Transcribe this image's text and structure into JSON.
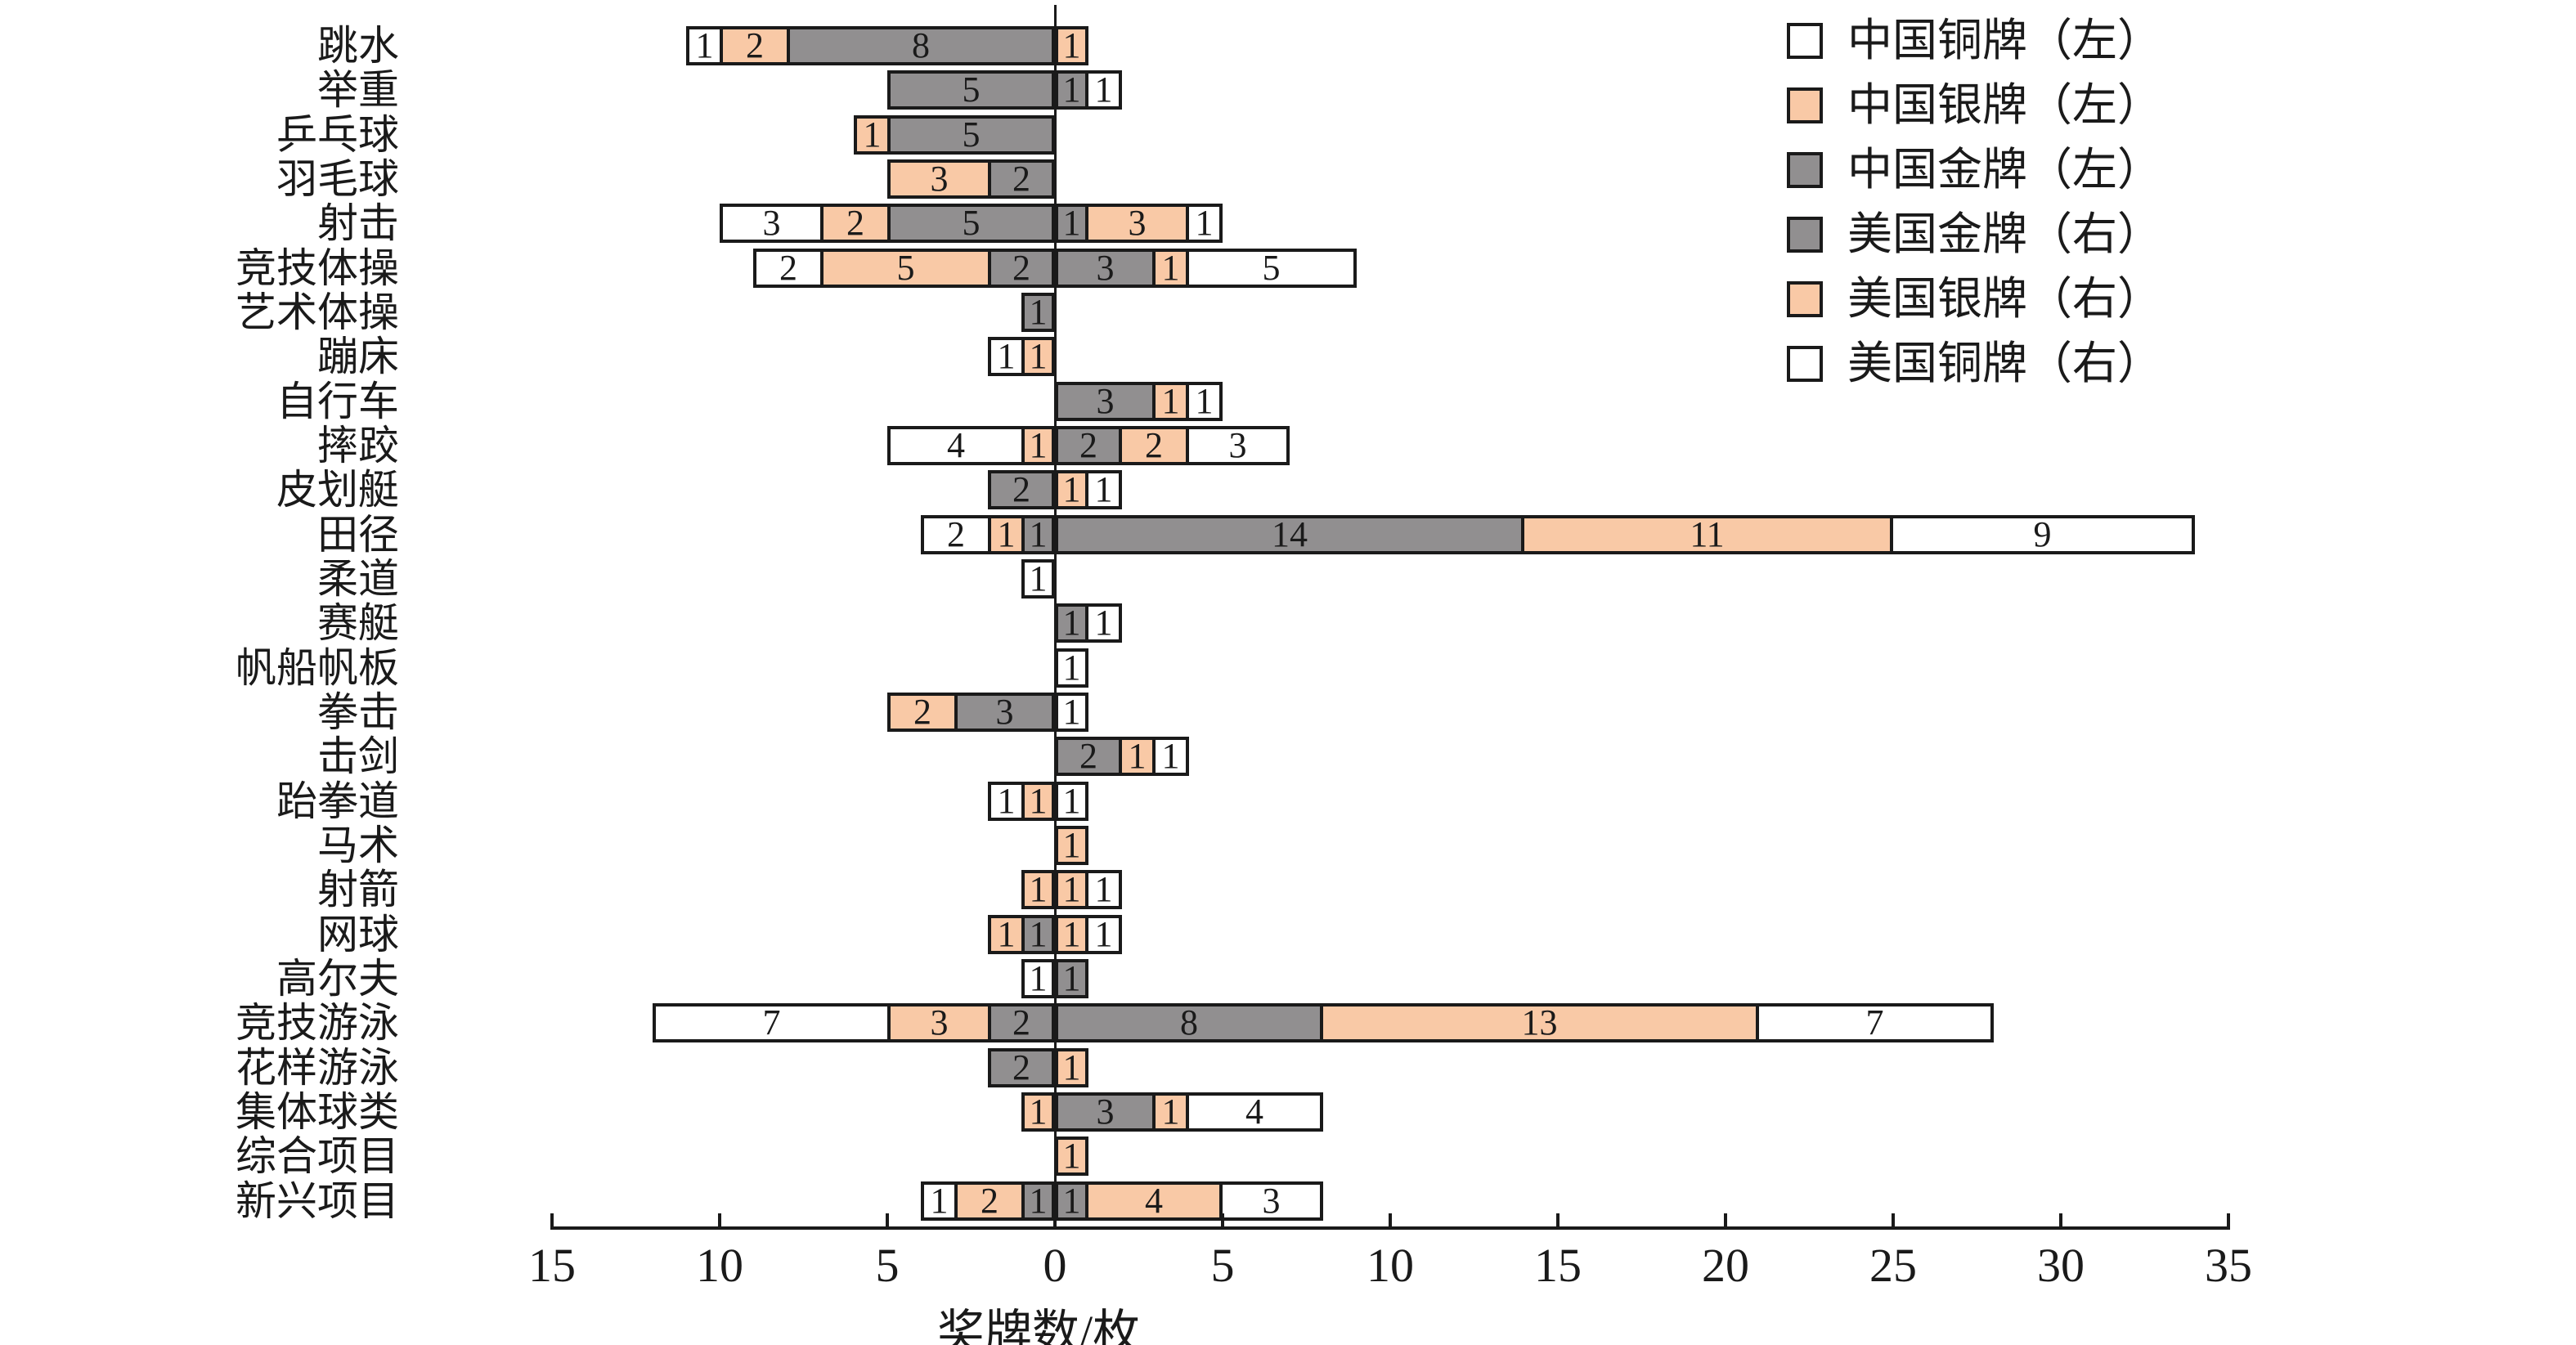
{
  "chart_data": {
    "type": "bar",
    "variant": "diverging-stacked-horizontal",
    "title": "",
    "xlabel": "奖牌数/枚",
    "axis": {
      "left_side": "中国 (China, 左)",
      "right_side": "美国 (USA, 右)",
      "ticks": [
        -15,
        -10,
        -5,
        0,
        5,
        10,
        15,
        20,
        25,
        30,
        35
      ],
      "tick_step": 5,
      "xlim_left": -15,
      "xlim_right": 35,
      "grid": false
    },
    "medal_colors": {
      "gold": "#918f90",
      "silver": "#f9c9a6",
      "bronze": "#ffffff",
      "border": "#1a1a1a"
    },
    "stack_order_from_axis": [
      "gold",
      "silver",
      "bronze"
    ],
    "legend_position": "top-right",
    "legend": [
      {
        "label": "中国铜牌（左）",
        "color": "#ffffff"
      },
      {
        "label": "中国银牌（左）",
        "color": "#f9c9a6"
      },
      {
        "label": "中国金牌（左）",
        "color": "#918f90"
      },
      {
        "label": "美国金牌（右）",
        "color": "#918f90"
      },
      {
        "label": "美国银牌（右）",
        "color": "#f9c9a6"
      },
      {
        "label": "美国铜牌（右）",
        "color": "#ffffff"
      }
    ],
    "rows": [
      {
        "sport": "跳水",
        "china": {
          "gold": 8,
          "silver": 2,
          "bronze": 1
        },
        "usa": {
          "gold": 0,
          "silver": 1,
          "bronze": 0
        }
      },
      {
        "sport": "举重",
        "china": {
          "gold": 5,
          "silver": 0,
          "bronze": 0
        },
        "usa": {
          "gold": 1,
          "silver": 0,
          "bronze": 1
        }
      },
      {
        "sport": "乒乓球",
        "china": {
          "gold": 5,
          "silver": 1,
          "bronze": 0
        },
        "usa": {
          "gold": 0,
          "silver": 0,
          "bronze": 0
        }
      },
      {
        "sport": "羽毛球",
        "china": {
          "gold": 2,
          "silver": 3,
          "bronze": 0
        },
        "usa": {
          "gold": 0,
          "silver": 0,
          "bronze": 0
        }
      },
      {
        "sport": "射击",
        "china": {
          "gold": 5,
          "silver": 2,
          "bronze": 3
        },
        "usa": {
          "gold": 1,
          "silver": 3,
          "bronze": 1
        }
      },
      {
        "sport": "竞技体操",
        "china": {
          "gold": 2,
          "silver": 5,
          "bronze": 2
        },
        "usa": {
          "gold": 3,
          "silver": 1,
          "bronze": 5
        }
      },
      {
        "sport": "艺术体操",
        "china": {
          "gold": 1,
          "silver": 0,
          "bronze": 0
        },
        "usa": {
          "gold": 0,
          "silver": 0,
          "bronze": 0
        }
      },
      {
        "sport": "蹦床",
        "china": {
          "gold": 0,
          "silver": 1,
          "bronze": 1
        },
        "usa": {
          "gold": 0,
          "silver": 0,
          "bronze": 0
        }
      },
      {
        "sport": "自行车",
        "china": {
          "gold": 0,
          "silver": 0,
          "bronze": 0
        },
        "usa": {
          "gold": 3,
          "silver": 1,
          "bronze": 1
        }
      },
      {
        "sport": "摔跤",
        "china": {
          "gold": 0,
          "silver": 1,
          "bronze": 4
        },
        "usa": {
          "gold": 2,
          "silver": 2,
          "bronze": 3
        }
      },
      {
        "sport": "皮划艇",
        "china": {
          "gold": 2,
          "silver": 0,
          "bronze": 0
        },
        "usa": {
          "gold": 0,
          "silver": 1,
          "bronze": 1
        }
      },
      {
        "sport": "田径",
        "china": {
          "gold": 1,
          "silver": 1,
          "bronze": 2
        },
        "usa": {
          "gold": 14,
          "silver": 11,
          "bronze": 9
        }
      },
      {
        "sport": "柔道",
        "china": {
          "gold": 0,
          "silver": 0,
          "bronze": 1
        },
        "usa": {
          "gold": 0,
          "silver": 0,
          "bronze": 0
        }
      },
      {
        "sport": "赛艇",
        "china": {
          "gold": 0,
          "silver": 0,
          "bronze": 0
        },
        "usa": {
          "gold": 1,
          "silver": 0,
          "bronze": 1
        }
      },
      {
        "sport": "帆船帆板",
        "china": {
          "gold": 0,
          "silver": 0,
          "bronze": 0
        },
        "usa": {
          "gold": 0,
          "silver": 0,
          "bronze": 1
        }
      },
      {
        "sport": "拳击",
        "china": {
          "gold": 3,
          "silver": 2,
          "bronze": 0
        },
        "usa": {
          "gold": 0,
          "silver": 0,
          "bronze": 1
        }
      },
      {
        "sport": "击剑",
        "china": {
          "gold": 0,
          "silver": 0,
          "bronze": 0
        },
        "usa": {
          "gold": 2,
          "silver": 1,
          "bronze": 1
        }
      },
      {
        "sport": "跆拳道",
        "china": {
          "gold": 0,
          "silver": 1,
          "bronze": 1
        },
        "usa": {
          "gold": 0,
          "silver": 0,
          "bronze": 1
        }
      },
      {
        "sport": "马术",
        "china": {
          "gold": 0,
          "silver": 0,
          "bronze": 0
        },
        "usa": {
          "gold": 0,
          "silver": 1,
          "bronze": 0
        }
      },
      {
        "sport": "射箭",
        "china": {
          "gold": 0,
          "silver": 1,
          "bronze": 0
        },
        "usa": {
          "gold": 0,
          "silver": 1,
          "bronze": 1
        }
      },
      {
        "sport": "网球",
        "china": {
          "gold": 1,
          "silver": 1,
          "bronze": 0
        },
        "usa": {
          "gold": 0,
          "silver": 1,
          "bronze": 1
        }
      },
      {
        "sport": "高尔夫",
        "china": {
          "gold": 0,
          "silver": 0,
          "bronze": 1
        },
        "usa": {
          "gold": 1,
          "silver": 0,
          "bronze": 0
        }
      },
      {
        "sport": "竞技游泳",
        "china": {
          "gold": 2,
          "silver": 3,
          "bronze": 7
        },
        "usa": {
          "gold": 8,
          "silver": 13,
          "bronze": 7
        }
      },
      {
        "sport": "花样游泳",
        "china": {
          "gold": 2,
          "silver": 0,
          "bronze": 0
        },
        "usa": {
          "gold": 0,
          "silver": 1,
          "bronze": 0
        }
      },
      {
        "sport": "集体球类",
        "china": {
          "gold": 0,
          "silver": 1,
          "bronze": 0
        },
        "usa": {
          "gold": 3,
          "silver": 1,
          "bronze": 4
        }
      },
      {
        "sport": "综合项目",
        "china": {
          "gold": 0,
          "silver": 0,
          "bronze": 0
        },
        "usa": {
          "gold": 0,
          "silver": 1,
          "bronze": 0
        }
      },
      {
        "sport": "新兴项目",
        "china": {
          "gold": 1,
          "silver": 2,
          "bronze": 1
        },
        "usa": {
          "gold": 1,
          "silver": 4,
          "bronze": 3
        }
      }
    ]
  }
}
